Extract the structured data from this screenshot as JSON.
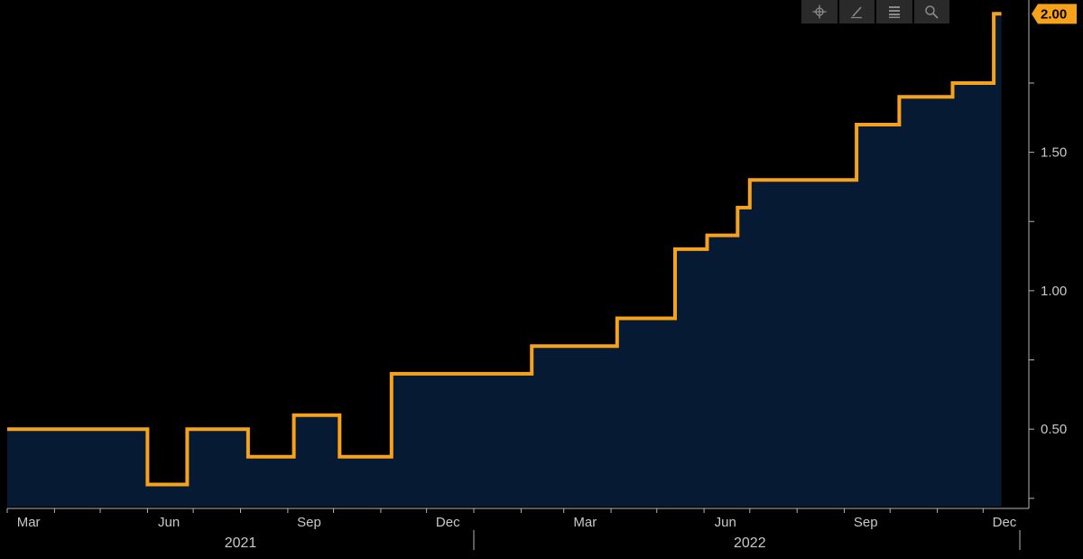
{
  "toolbar": {
    "icons": [
      "crosshair-icon",
      "pencil-icon",
      "list-icon",
      "magnifier-icon"
    ]
  },
  "last_value_label": "2.00",
  "colors": {
    "line": "#f7a21b",
    "fill": "#071a33",
    "background": "#000000",
    "axis": "#b4b4b4"
  },
  "chart_data": {
    "type": "area",
    "step": true,
    "title": "",
    "xlabel": "",
    "ylabel": "",
    "x_tick_labels": [
      "Mar",
      "Jun",
      "Sep",
      "Dec",
      "Mar",
      "Jun",
      "Sep",
      "Dec"
    ],
    "year_labels": [
      "2021",
      "2022"
    ],
    "y_tick_labels": [
      "0.50",
      "1.00",
      "1.50"
    ],
    "ylim": [
      0.22,
      2.05
    ],
    "xlim": [
      "2021-03-01",
      "2022-12-31"
    ],
    "y_axis_position": "right",
    "grid": false,
    "series": [
      {
        "points": [
          {
            "date": "2021-03-01",
            "value": 0.5
          },
          {
            "date": "2021-06-01",
            "value": 0.3
          },
          {
            "date": "2021-06-27",
            "value": 0.5
          },
          {
            "date": "2021-08-06",
            "value": 0.4
          },
          {
            "date": "2021-09-05",
            "value": 0.55
          },
          {
            "date": "2021-10-05",
            "value": 0.4
          },
          {
            "date": "2021-11-08",
            "value": 0.7
          },
          {
            "date": "2022-02-08",
            "value": 0.8
          },
          {
            "date": "2022-04-05",
            "value": 0.9
          },
          {
            "date": "2022-05-13",
            "value": 1.15
          },
          {
            "date": "2022-06-03",
            "value": 1.2
          },
          {
            "date": "2022-06-23",
            "value": 1.3
          },
          {
            "date": "2022-07-01",
            "value": 1.4
          },
          {
            "date": "2022-09-09",
            "value": 1.6
          },
          {
            "date": "2022-10-07",
            "value": 1.7
          },
          {
            "date": "2022-11-11",
            "value": 1.75
          },
          {
            "date": "2022-12-08",
            "value": 2.0
          },
          {
            "date": "2022-12-13",
            "value": 2.0
          }
        ]
      }
    ]
  }
}
